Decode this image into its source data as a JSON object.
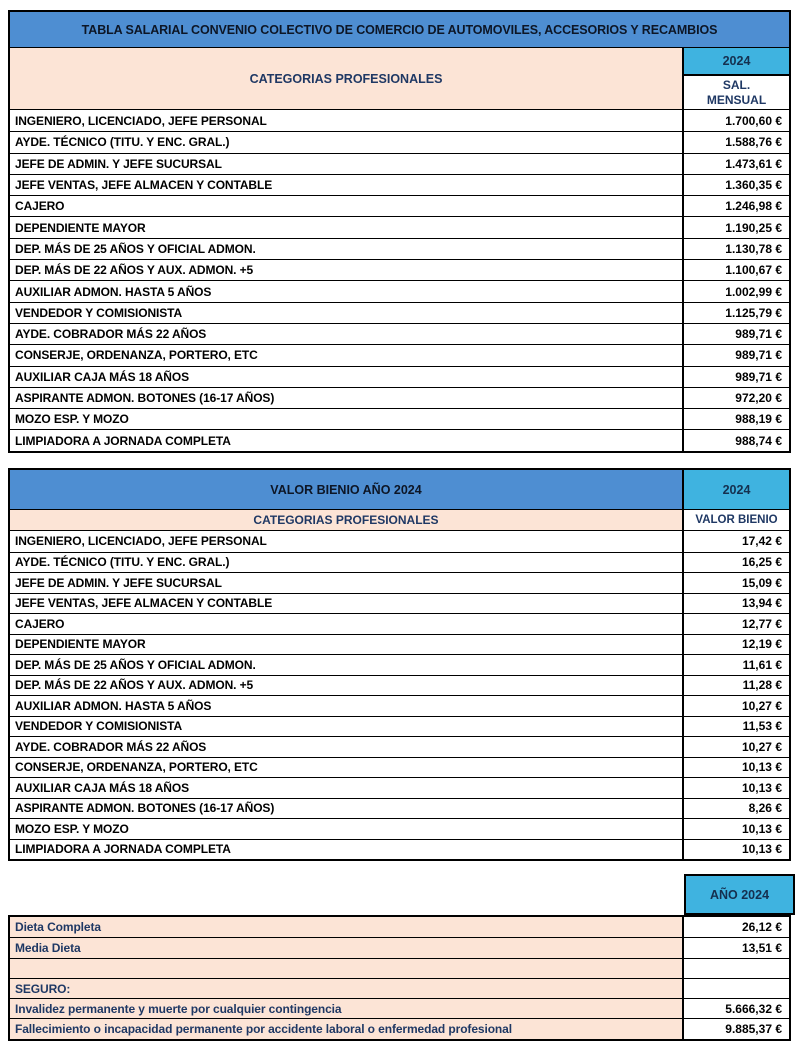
{
  "colors": {
    "banner_blue": "#4e8ed2",
    "header_cyan": "#3fb3e0",
    "label_peach": "#fce4d6",
    "header_text_navy": "#1f3864",
    "data_text": "#000000",
    "border": "#000000"
  },
  "table1": {
    "title": "TABLA SALARIAL CONVENIO COLECTIVO DE COMERCIO DE AUTOMOVILES, ACCESORIOS Y RECAMBIOS",
    "col_header": "CATEGORIAS PROFESIONALES",
    "year": "2024",
    "value_header": "SAL. MENSUAL",
    "rows": [
      {
        "label": "INGENIERO, LICENCIADO, JEFE PERSONAL",
        "value": "1.700,60 €"
      },
      {
        "label": "AYDE. TÉCNICO (TITU. Y ENC. GRAL.)",
        "value": "1.588,76 €"
      },
      {
        "label": "JEFE DE ADMIN. Y JEFE SUCURSAL",
        "value": "1.473,61 €"
      },
      {
        "label": "JEFE VENTAS, JEFE ALMACEN Y CONTABLE",
        "value": "1.360,35 €"
      },
      {
        "label": "CAJERO",
        "value": "1.246,98 €"
      },
      {
        "label": "DEPENDIENTE MAYOR",
        "value": "1.190,25 €"
      },
      {
        "label": "DEP. MÁS DE 25 AÑOS Y OFICIAL ADMON.",
        "value": "1.130,78 €"
      },
      {
        "label": "DEP. MÁS DE 22 AÑOS Y AUX. ADMON. +5",
        "value": "1.100,67 €"
      },
      {
        "label": "AUXILIAR ADMON. HASTA 5 AÑOS",
        "value": "1.002,99 €"
      },
      {
        "label": "VENDEDOR Y COMISIONISTA",
        "value": "1.125,79 €"
      },
      {
        "label": "AYDE. COBRADOR MÁS 22 AÑOS",
        "value": "989,71 €"
      },
      {
        "label": "CONSERJE, ORDENANZA, PORTERO, ETC",
        "value": "989,71 €"
      },
      {
        "label": "AUXILIAR CAJA MÁS 18 AÑOS",
        "value": "989,71 €"
      },
      {
        "label": "ASPIRANTE ADMON. BOTONES (16-17 AÑOS)",
        "value": "972,20 €"
      },
      {
        "label": "MOZO ESP. Y MOZO",
        "value": "988,19 €"
      },
      {
        "label": "LIMPIADORA A JORNADA COMPLETA",
        "value": "988,74 €"
      }
    ]
  },
  "table2": {
    "title": "VALOR BIENIO AÑO 2024",
    "col_header": "CATEGORIAS PROFESIONALES",
    "year": "2024",
    "value_header": "VALOR BIENIO",
    "rows": [
      {
        "label": "INGENIERO, LICENCIADO, JEFE PERSONAL",
        "value": "17,42 €"
      },
      {
        "label": "AYDE. TÉCNICO (TITU. Y ENC. GRAL.)",
        "value": "16,25 €"
      },
      {
        "label": "JEFE DE ADMIN. Y JEFE SUCURSAL",
        "value": "15,09 €"
      },
      {
        "label": "JEFE VENTAS, JEFE ALMACEN Y CONTABLE",
        "value": "13,94 €"
      },
      {
        "label": "CAJERO",
        "value": "12,77 €"
      },
      {
        "label": "DEPENDIENTE MAYOR",
        "value": "12,19 €"
      },
      {
        "label": "DEP. MÁS DE 25 AÑOS Y OFICIAL ADMON.",
        "value": "11,61 €"
      },
      {
        "label": "DEP. MÁS DE 22 AÑOS Y AUX. ADMON. +5",
        "value": "11,28 €"
      },
      {
        "label": "AUXILIAR ADMON. HASTA 5 AÑOS",
        "value": "10,27 €"
      },
      {
        "label": "VENDEDOR Y COMISIONISTA",
        "value": "11,53 €"
      },
      {
        "label": "AYDE. COBRADOR MÁS 22 AÑOS",
        "value": "10,27 €"
      },
      {
        "label": "CONSERJE, ORDENANZA, PORTERO, ETC",
        "value": "10,13 €"
      },
      {
        "label": "AUXILIAR CAJA MÁS 18 AÑOS",
        "value": "10,13 €"
      },
      {
        "label": "ASPIRANTE ADMON. BOTONES (16-17 AÑOS)",
        "value": "8,26 €"
      },
      {
        "label": "MOZO ESP. Y MOZO",
        "value": "10,13 €"
      },
      {
        "label": "LIMPIADORA A JORNADA COMPLETA",
        "value": "10,13 €"
      }
    ]
  },
  "table3": {
    "year_header": "AÑO 2024",
    "rows": [
      {
        "label": "Dieta Completa",
        "value": "26,12 €"
      },
      {
        "label": "Media Dieta",
        "value": "13,51 €"
      },
      {
        "label": "",
        "value": ""
      },
      {
        "label": "SEGURO:",
        "value": ""
      },
      {
        "label": "Invalidez permanente y muerte por cualquier contingencia",
        "value": "5.666,32 €"
      },
      {
        "label": "Fallecimiento o incapacidad permanente por accidente laboral o enfermedad profesional",
        "value": "9.885,37 €"
      }
    ]
  }
}
